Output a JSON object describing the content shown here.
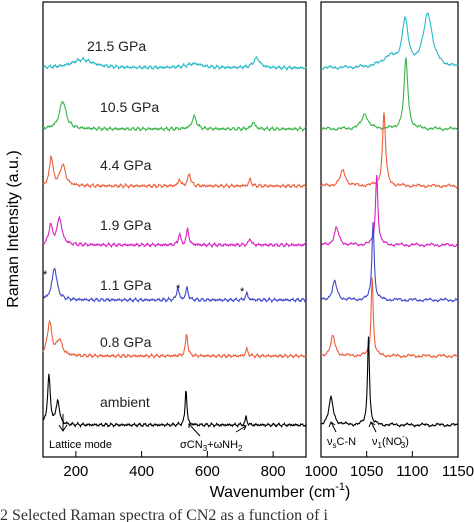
{
  "chart_data": {
    "type": "line",
    "xlabel": "Wavenumber (cm",
    "xlabel_sup": "-1",
    "xlabel_close": ")",
    "ylabel": "Raman Intensity (a.u.)",
    "left_panel": {
      "xlim": [
        100,
        900
      ],
      "xticks": [
        "200",
        "400",
        "600",
        "800"
      ],
      "xtick_values": [
        200,
        400,
        600,
        800
      ]
    },
    "right_panel": {
      "xlim": [
        1000,
        1150
      ],
      "xticks": [
        "1000",
        "1050",
        "1100",
        "1150"
      ],
      "xtick_values": [
        1000,
        1050,
        1100,
        1150
      ]
    },
    "series": [
      {
        "name": "21.5 GPa",
        "color": "#27b9c8",
        "left_peaks": [
          [
            220,
            0.3,
            40
          ],
          [
            560,
            0.15,
            30
          ],
          [
            750,
            0.35,
            12
          ]
        ],
        "right_peaks": [
          [
            1075,
            0.35,
            10
          ],
          [
            1092,
            1.6,
            4
          ],
          [
            1117,
            1.9,
            6
          ]
        ]
      },
      {
        "name": "10.5 GPa",
        "color": "#3bb44a",
        "left_peaks": [
          [
            160,
            1.0,
            12
          ],
          [
            560,
            0.45,
            8
          ],
          [
            740,
            0.25,
            6
          ]
        ],
        "right_peaks": [
          [
            1048,
            0.55,
            4
          ],
          [
            1093,
            2.5,
            2.5
          ]
        ]
      },
      {
        "name": "4.4 GPa",
        "color": "#ec5f3a",
        "left_peaks": [
          [
            125,
            1.05,
            6
          ],
          [
            160,
            0.75,
            10
          ],
          [
            515,
            0.25,
            4
          ],
          [
            545,
            0.45,
            5
          ],
          [
            730,
            0.25,
            4
          ]
        ],
        "right_peaks": [
          [
            1024,
            0.55,
            3.5
          ],
          [
            1069,
            2.6,
            2
          ]
        ]
      },
      {
        "name": "1.9 GPa",
        "color": "#d81fc0",
        "left_peaks": [
          [
            123,
            0.7,
            6
          ],
          [
            150,
            0.95,
            9
          ],
          [
            515,
            0.4,
            4
          ],
          [
            540,
            0.6,
            4
          ],
          [
            730,
            0.25,
            4
          ]
        ],
        "right_peaks": [
          [
            1017,
            0.6,
            3
          ],
          [
            1061,
            2.5,
            1.6
          ]
        ]
      },
      {
        "name": "1.1 GPa",
        "color": "#3f48c9",
        "left_peaks": [
          [
            135,
            1.15,
            9
          ],
          [
            510,
            0.45,
            4
          ],
          [
            538,
            0.45,
            4
          ],
          [
            720,
            0.25,
            4
          ]
        ],
        "right_peaks": [
          [
            1015,
            0.65,
            3
          ],
          [
            1057,
            2.8,
            1.5
          ]
        ]
      },
      {
        "name": "0.8 GPa",
        "color": "#ec5f3a",
        "left_peaks": [
          [
            120,
            1.2,
            8
          ],
          [
            150,
            0.55,
            10
          ],
          [
            537,
            0.8,
            4
          ],
          [
            720,
            0.25,
            4
          ]
        ],
        "right_peaks": [
          [
            1013,
            0.7,
            3
          ],
          [
            1056,
            2.8,
            1.4
          ]
        ]
      },
      {
        "name": "ambient",
        "color": "#000000",
        "left_peaks": [
          [
            118,
            1.75,
            5
          ],
          [
            145,
            0.85,
            6
          ],
          [
            535,
            1.35,
            3
          ],
          [
            718,
            0.3,
            3
          ]
        ],
        "right_peaks": [
          [
            1011,
            0.95,
            3
          ],
          [
            1052,
            3.2,
            1.3
          ]
        ]
      }
    ],
    "annotations": {
      "lattice": "Lattice mode",
      "sigma_a": "σCN",
      "sigma_a_sub": "3",
      "sigma_b": "+ωNH",
      "sigma_b_sub": "2",
      "nu_s_a": "ν",
      "nu_s_sub": "s",
      "nu_s_b": "C-N",
      "nu1_a": "ν",
      "nu1_sub": "1",
      "nu1_b": "(NO",
      "nu1_sup": "-",
      "nu1_sub2": "3",
      "nu1_c": ")",
      "star": "*"
    },
    "caption_fragment": "2    Selected Raman spectra of CN2 as a function of i"
  }
}
